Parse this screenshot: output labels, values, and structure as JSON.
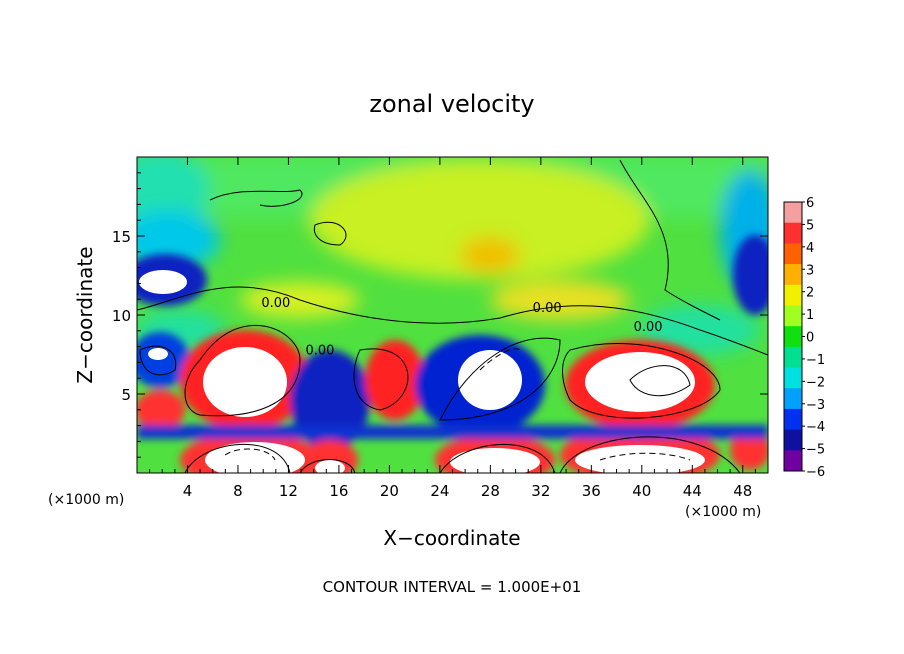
{
  "chart_data": {
    "type": "heatmap",
    "title": "zonal velocity",
    "xlabel": "X−coordinate",
    "ylabel": "Z−coordinate",
    "x_unit_left": "(×1000 m)",
    "x_unit_right": "(×1000 m)",
    "xlim": [
      0,
      50
    ],
    "ylim": [
      0,
      20
    ],
    "x_ticks": [
      4,
      8,
      12,
      16,
      20,
      24,
      28,
      32,
      36,
      40,
      44,
      48
    ],
    "y_ticks": [
      5,
      10,
      15
    ],
    "colorbar": {
      "levels": [
        6,
        5,
        4,
        3,
        2,
        1,
        0,
        -1,
        -2,
        -3,
        -4,
        -5,
        -6
      ],
      "labels": [
        "6",
        "5",
        "4",
        "3",
        "2",
        "1",
        "0",
        "−1",
        "−2",
        "−3",
        "−4",
        "−5",
        "−6"
      ],
      "colors": [
        "#f4a0a0",
        "#ff3030",
        "#ff6000",
        "#ffb000",
        "#f0f000",
        "#a0ff20",
        "#10e010",
        "#00e090",
        "#00e0e0",
        "#00a0ff",
        "#0030f0",
        "#1010a0",
        "#7000a0"
      ]
    },
    "contour_labels": [
      {
        "text": "0.00",
        "x": 11,
        "y": 10.5
      },
      {
        "text": "0.00",
        "x": 14.5,
        "y": 7.5
      },
      {
        "text": "0.00",
        "x": 32.5,
        "y": 10.2
      },
      {
        "text": "0.00",
        "x": 40.5,
        "y": 9.0
      }
    ],
    "footer": "CONTOUR INTERVAL = 1.000E+01"
  }
}
